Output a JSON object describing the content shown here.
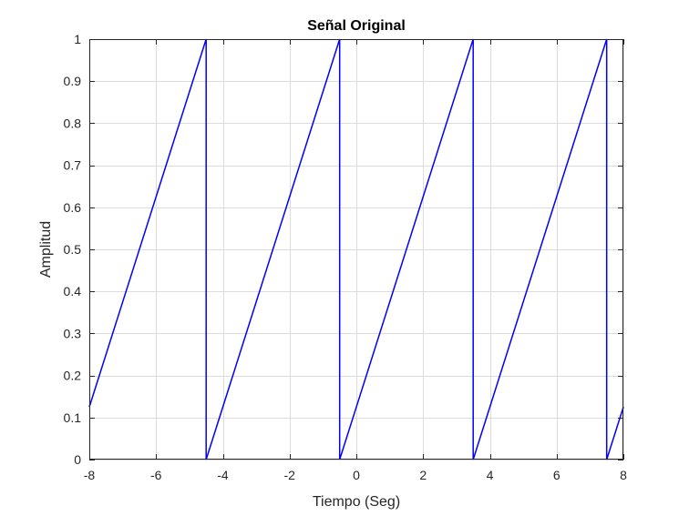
{
  "chart_data": {
    "type": "line",
    "title": "Señal Original",
    "xlabel": "Tiempo (Seg)",
    "ylabel": "Amplitud",
    "xlim": [
      -8,
      8
    ],
    "ylim": [
      0,
      1
    ],
    "grid": true,
    "xticks": [
      -8,
      -6,
      -4,
      -2,
      0,
      2,
      4,
      6,
      8
    ],
    "yticks": [
      0,
      0.1,
      0.2,
      0.3,
      0.4,
      0.5,
      0.6,
      0.7,
      0.8,
      0.9,
      1
    ],
    "xtick_labels": [
      "-8",
      "-6",
      "-4",
      "-2",
      "0",
      "2",
      "4",
      "6",
      "8"
    ],
    "ytick_labels": [
      "0",
      "0.1",
      "0.2",
      "0.3",
      "0.4",
      "0.5",
      "0.6",
      "0.7",
      "0.8",
      "0.9",
      "1"
    ],
    "series": [
      {
        "color": "#0000ff",
        "x": [
          -8,
          -4.5,
          -4.5,
          -0.5,
          -0.5,
          3.5,
          3.5,
          7.5,
          7.5,
          8
        ],
        "y": [
          0.125,
          1,
          0,
          1,
          0,
          1,
          0,
          1,
          0,
          0.125
        ]
      }
    ]
  }
}
